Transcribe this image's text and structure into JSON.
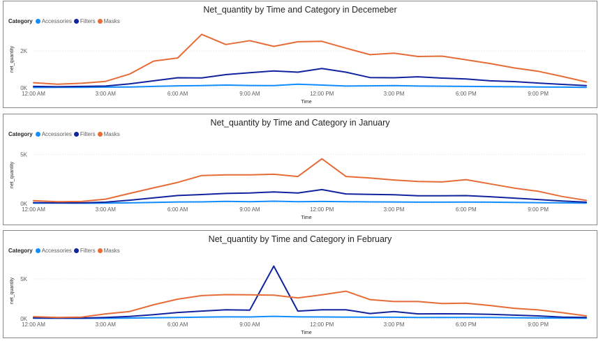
{
  "colors": {
    "Accessories": "#118dff",
    "Filters": "#12239e",
    "Masks": "#e66c37",
    "grid": "#e1dfdd",
    "axis_text": "#605e5c"
  },
  "legend_title": "Category",
  "chart_data": [
    {
      "type": "line",
      "title": "Net_quantity by Time and Category in Decemeber",
      "xlabel": "Time",
      "ylabel": "net_quantity",
      "x": [
        "12:00 AM",
        "1:00 AM",
        "2:00 AM",
        "3:00 AM",
        "4:00 AM",
        "5:00 AM",
        "6:00 AM",
        "7:00 AM",
        "8:00 AM",
        "9:00 AM",
        "10:00 AM",
        "11:00 AM",
        "12:00 PM",
        "1:00 PM",
        "2:00 PM",
        "3:00 PM",
        "4:00 PM",
        "5:00 PM",
        "6:00 PM",
        "7:00 PM",
        "8:00 PM",
        "9:00 PM",
        "10:00 PM",
        "11:00 PM"
      ],
      "x_ticks": [
        "12:00 AM",
        "3:00 AM",
        "6:00 AM",
        "9:00 AM",
        "12:00 PM",
        "3:00 PM",
        "6:00 PM",
        "9:00 PM"
      ],
      "y_ticks": [
        "0K",
        "2K"
      ],
      "y_tick_values": [
        0,
        2000
      ],
      "ylim": [
        0,
        3100
      ],
      "grid": true,
      "series": [
        {
          "name": "Accessories",
          "values": [
            20,
            25,
            30,
            40,
            50,
            80,
            110,
            120,
            150,
            130,
            120,
            200,
            150,
            100,
            110,
            120,
            100,
            90,
            80,
            70,
            60,
            50,
            40,
            30
          ]
        },
        {
          "name": "Filters",
          "values": [
            80,
            60,
            80,
            100,
            220,
            380,
            550,
            540,
            720,
            820,
            920,
            850,
            1050,
            850,
            560,
            550,
            600,
            530,
            480,
            380,
            340,
            260,
            190,
            120
          ]
        },
        {
          "name": "Masks",
          "values": [
            280,
            200,
            250,
            350,
            750,
            1450,
            1620,
            2900,
            2350,
            2560,
            2250,
            2500,
            2520,
            2150,
            1800,
            1880,
            1700,
            1720,
            1520,
            1320,
            1080,
            900,
            620,
            320
          ]
        }
      ]
    },
    {
      "type": "line",
      "title": "Net_quantity by Time and Category in January",
      "xlabel": "Time",
      "ylabel": "net_quantity",
      "x": [
        "12:00 AM",
        "1:00 AM",
        "2:00 AM",
        "3:00 AM",
        "4:00 AM",
        "5:00 AM",
        "6:00 AM",
        "7:00 AM",
        "8:00 AM",
        "9:00 AM",
        "10:00 AM",
        "11:00 AM",
        "12:00 PM",
        "1:00 PM",
        "2:00 PM",
        "3:00 PM",
        "4:00 PM",
        "5:00 PM",
        "6:00 PM",
        "7:00 PM",
        "8:00 PM",
        "9:00 PM",
        "10:00 PM",
        "11:00 PM"
      ],
      "x_ticks": [
        "12:00 AM",
        "3:00 AM",
        "6:00 AM",
        "9:00 AM",
        "12:00 PM",
        "3:00 PM",
        "6:00 PM",
        "9:00 PM"
      ],
      "y_ticks": [
        "0K",
        "5K"
      ],
      "y_tick_values": [
        0,
        5000
      ],
      "ylim": [
        0,
        5800
      ],
      "grid": true,
      "series": [
        {
          "name": "Accessories",
          "values": [
            50,
            50,
            40,
            60,
            80,
            120,
            170,
            180,
            230,
            190,
            250,
            200,
            220,
            200,
            180,
            170,
            150,
            150,
            160,
            150,
            120,
            100,
            80,
            50
          ]
        },
        {
          "name": "Filters",
          "values": [
            100,
            80,
            80,
            150,
            350,
            580,
            820,
            920,
            1030,
            1080,
            1190,
            1080,
            1420,
            980,
            940,
            900,
            800,
            800,
            810,
            700,
            560,
            420,
            270,
            150
          ]
        },
        {
          "name": "Masks",
          "values": [
            300,
            200,
            220,
            450,
            1030,
            1600,
            2150,
            2850,
            2920,
            2920,
            2980,
            2750,
            4550,
            2750,
            2600,
            2400,
            2250,
            2200,
            2430,
            2000,
            1580,
            1250,
            720,
            330
          ]
        }
      ]
    },
    {
      "type": "line",
      "title": "Net_quantity by Time and Category in February",
      "xlabel": "Time",
      "ylabel": "net_quantity",
      "x": [
        "12:00 AM",
        "1:00 AM",
        "2:00 AM",
        "3:00 AM",
        "4:00 AM",
        "5:00 AM",
        "6:00 AM",
        "7:00 AM",
        "8:00 AM",
        "9:00 AM",
        "10:00 AM",
        "11:00 AM",
        "12:00 PM",
        "1:00 PM",
        "2:00 PM",
        "3:00 PM",
        "4:00 PM",
        "5:00 PM",
        "6:00 PM",
        "7:00 PM",
        "8:00 PM",
        "9:00 PM",
        "10:00 PM",
        "11:00 PM"
      ],
      "x_ticks": [
        "12:00 AM",
        "3:00 AM",
        "6:00 AM",
        "9:00 AM",
        "12:00 PM",
        "3:00 PM",
        "6:00 PM",
        "9:00 PM"
      ],
      "y_ticks": [
        "0K",
        "5K"
      ],
      "y_tick_values": [
        0,
        5000
      ],
      "ylim": [
        0,
        7000
      ],
      "grid": true,
      "series": [
        {
          "name": "Accessories",
          "values": [
            50,
            50,
            40,
            50,
            80,
            120,
            160,
            200,
            230,
            220,
            300,
            230,
            220,
            200,
            180,
            180,
            150,
            150,
            160,
            150,
            120,
            100,
            80,
            50
          ]
        },
        {
          "name": "Filters",
          "values": [
            100,
            80,
            80,
            150,
            280,
            500,
            780,
            950,
            1120,
            1080,
            6600,
            950,
            1120,
            1120,
            650,
            900,
            600,
            610,
            600,
            550,
            450,
            350,
            200,
            150
          ]
        },
        {
          "name": "Masks",
          "values": [
            250,
            150,
            200,
            600,
            900,
            1750,
            2450,
            2900,
            3020,
            3000,
            2950,
            2600,
            3000,
            3450,
            2400,
            2150,
            2150,
            1900,
            1950,
            1650,
            1300,
            1100,
            750,
            350
          ]
        }
      ]
    }
  ]
}
